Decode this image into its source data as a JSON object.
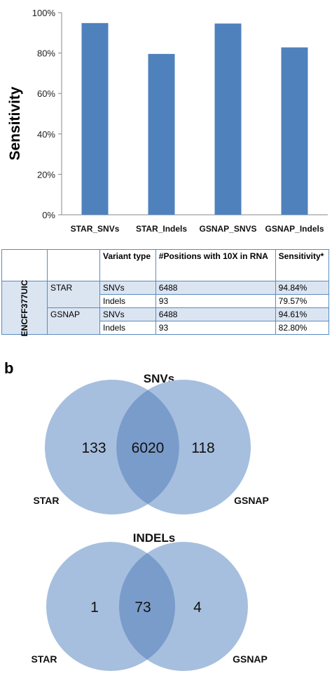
{
  "chart_data": {
    "type": "bar",
    "title": "",
    "xlabel": "",
    "ylabel": "Sensitivity",
    "categories": [
      "STAR_SNVs",
      "STAR_Indels",
      "GSNAP_SNVS",
      "GSNAP_Indels"
    ],
    "values": [
      94.84,
      79.57,
      94.61,
      82.8
    ],
    "ylim": [
      0,
      100
    ],
    "yticks": [
      "0%",
      "20%",
      "40%",
      "60%",
      "80%",
      "100%"
    ],
    "color": "#4f81bd",
    "grid": false
  },
  "table": {
    "headers": [
      "",
      "",
      "Variant type",
      "#Positions with 10X in RNA",
      "Sensitivity*"
    ],
    "sample": "ENCFF377UIC",
    "rows": [
      {
        "aligner": "STAR",
        "type": "SNVs",
        "positions": "6488",
        "sensitivity": "94.84%"
      },
      {
        "aligner": "",
        "type": "Indels",
        "positions": "93",
        "sensitivity": "79.57%"
      },
      {
        "aligner": "GSNAP",
        "type": "SNVs",
        "positions": "6488",
        "sensitivity": "94.61%"
      },
      {
        "aligner": "",
        "type": "Indels",
        "positions": "93",
        "sensitivity": "82.80%"
      }
    ]
  },
  "panel_b_label": "b",
  "venn": [
    {
      "title": "SNVs",
      "left_only": "133",
      "shared": "6020",
      "right_only": "118",
      "left_label": "STAR",
      "right_label": "GSNAP"
    },
    {
      "title": "INDELs",
      "left_only": "1",
      "shared": "73",
      "right_only": "4",
      "left_label": "STAR",
      "right_label": "GSNAP"
    }
  ],
  "colors": {
    "bar": "#4f81bd",
    "circle": "#a7bfde",
    "overlap": "#7a9ccb",
    "table_border": "#5b8ac0",
    "table_shade": "#dbe5f1"
  }
}
